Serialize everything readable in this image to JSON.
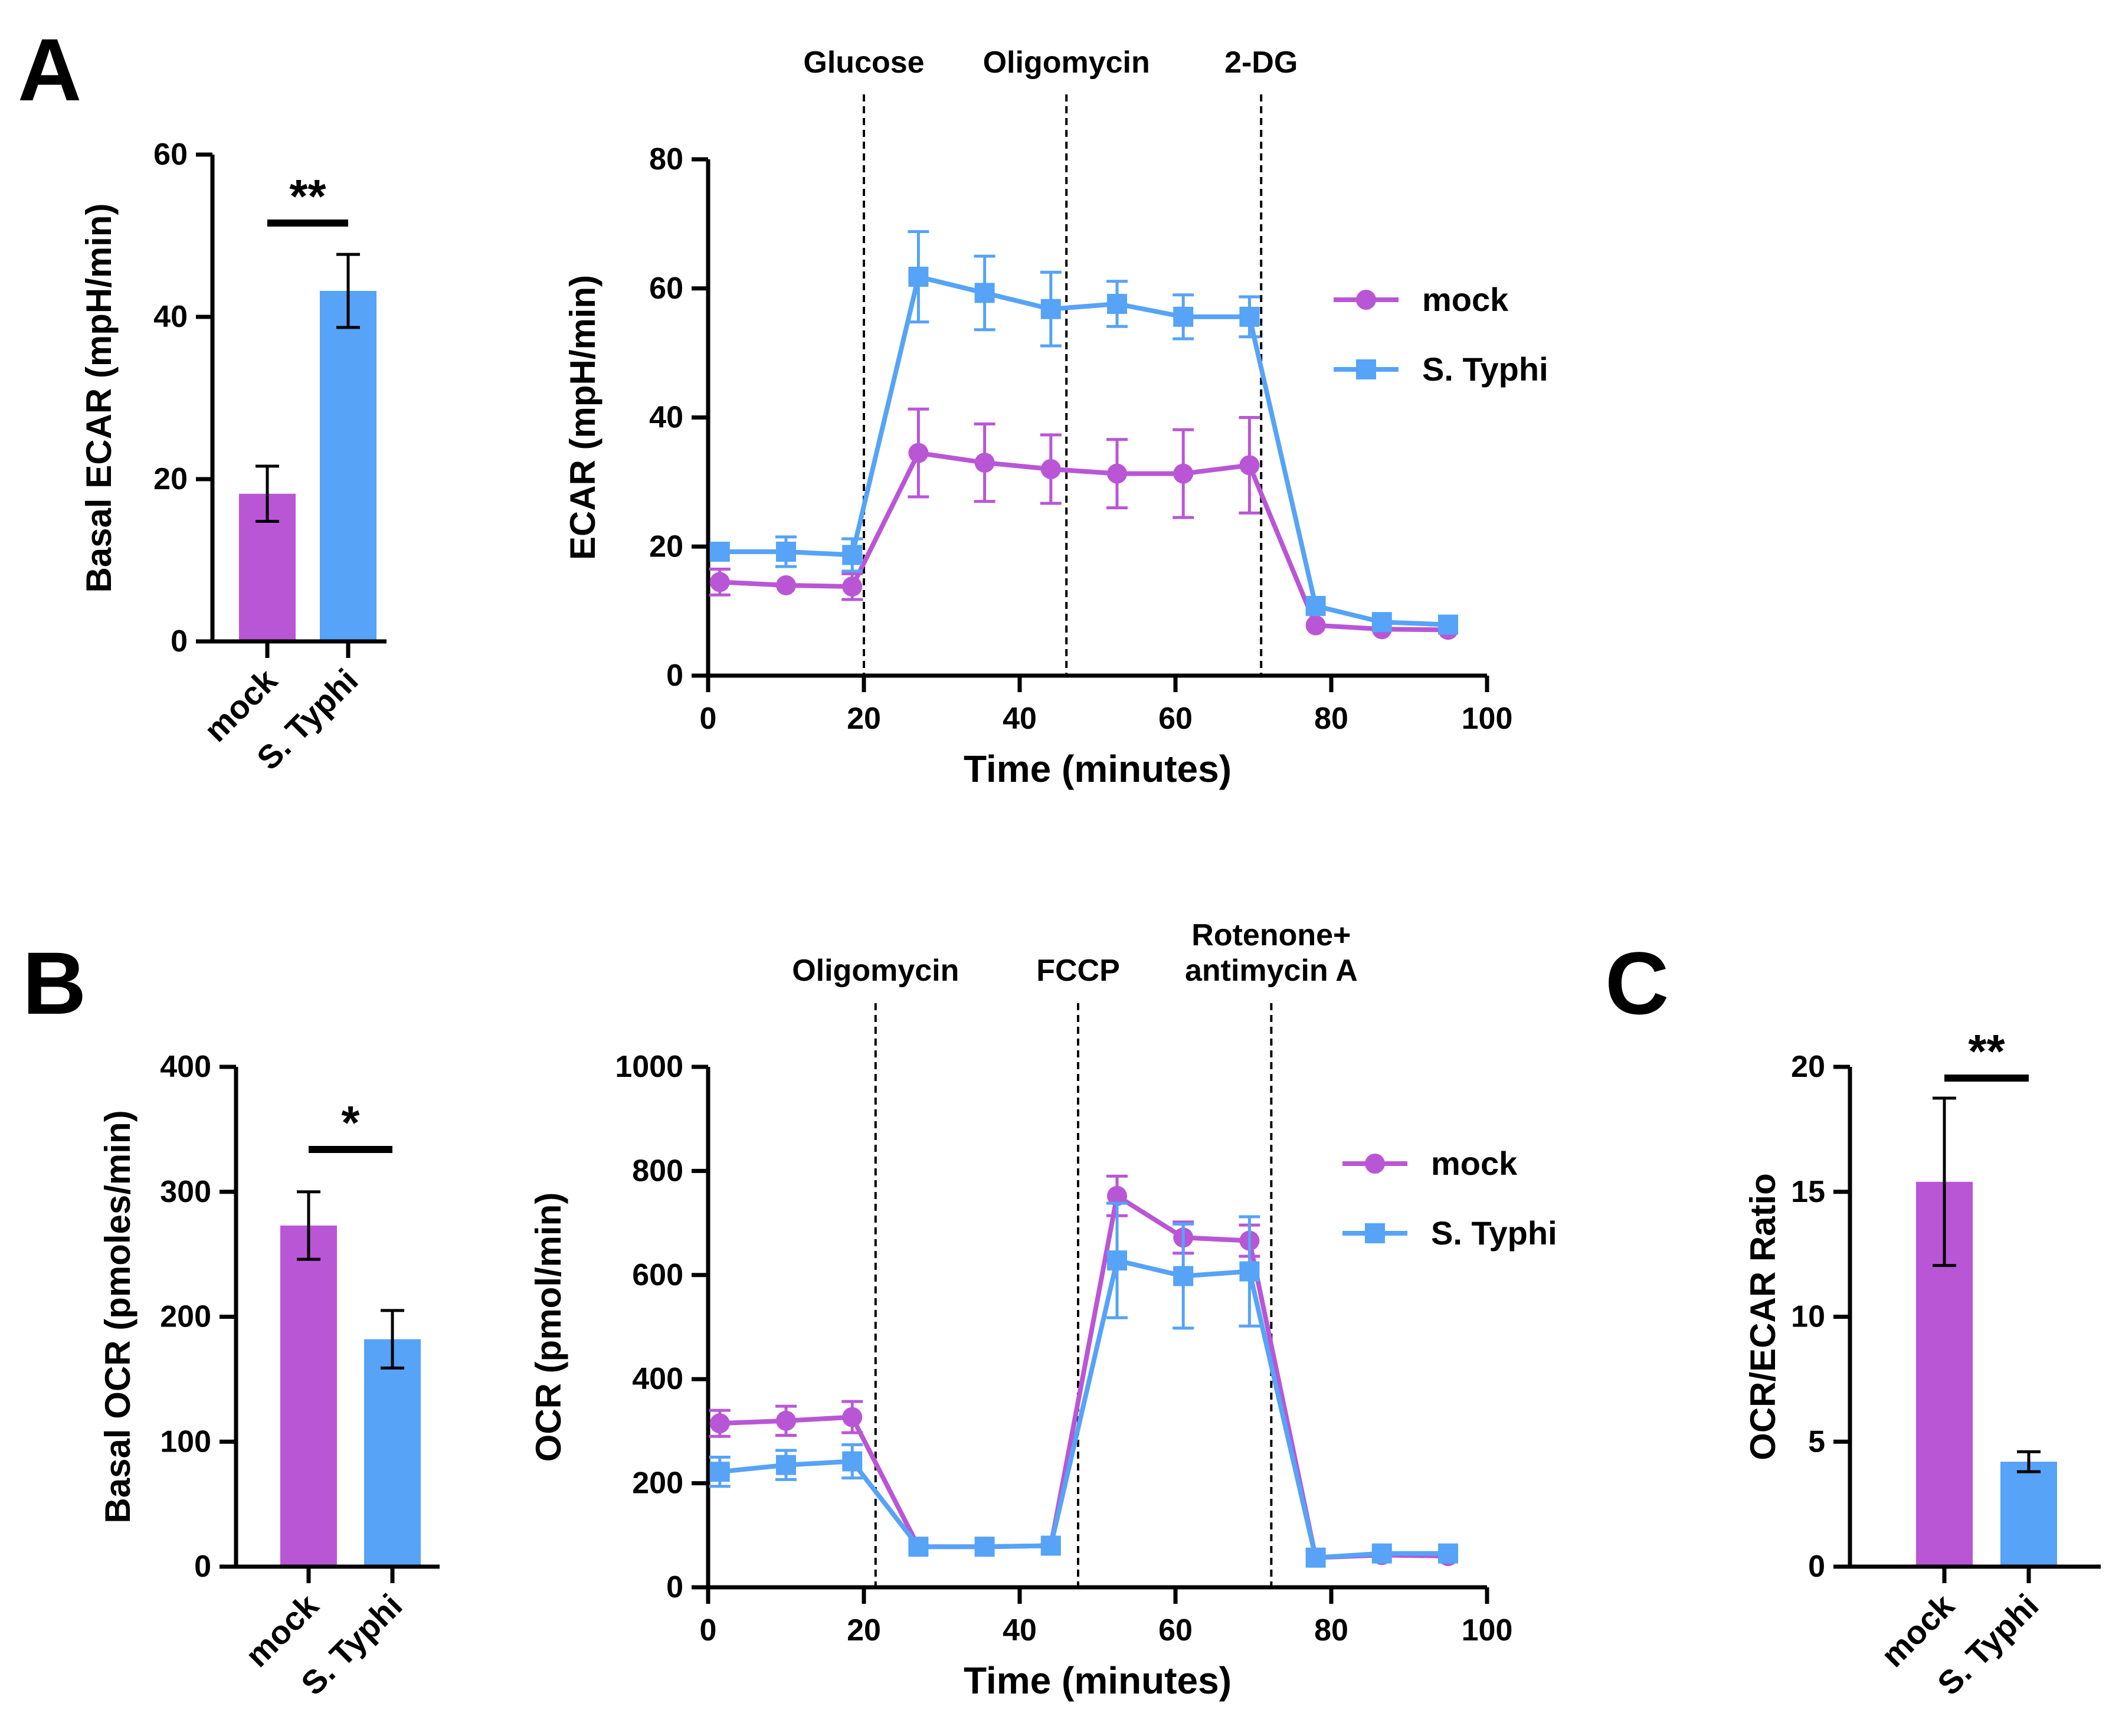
{
  "panel_labels": {
    "a": "A",
    "b": "B",
    "c": "C"
  },
  "colors": {
    "mock": "#B956D6",
    "typhi": "#56A3F7",
    "axis": "#000000"
  },
  "chart_data": [
    {
      "id": "basal-ecar",
      "type": "bar",
      "categories": [
        "mock",
        "S. Typhi"
      ],
      "values": [
        18.2,
        43.2
      ],
      "errors": [
        3.4,
        4.5
      ],
      "ylabel": "Basal ECAR (mpH/min)",
      "ylim": [
        0,
        60
      ],
      "yticks": [
        0,
        20,
        40,
        60
      ],
      "significance": "**",
      "bar_colors": [
        "#B956D6",
        "#56A3F7"
      ]
    },
    {
      "id": "ecar-time",
      "type": "line",
      "xlabel": "Time (minutes)",
      "ylabel": "ECAR (mpH/min)",
      "xlim": [
        0,
        100
      ],
      "ylim": [
        0,
        80
      ],
      "xticks": [
        0,
        20,
        40,
        60,
        80,
        100
      ],
      "yticks": [
        0,
        20,
        40,
        60,
        80
      ],
      "injections": [
        {
          "x": 20,
          "label": [
            "Glucose"
          ]
        },
        {
          "x": 46,
          "label": [
            "Oligomycin"
          ]
        },
        {
          "x": 71,
          "label": [
            "2-DG"
          ]
        }
      ],
      "legend": {
        "position": "right",
        "entries": [
          "mock",
          "S. Typhi"
        ]
      },
      "series": [
        {
          "name": "mock",
          "marker": "circle",
          "color": "#B956D6",
          "x": [
            1.5,
            10,
            18.5,
            27,
            35.5,
            44,
            52.5,
            61,
            69.5,
            78,
            86.5,
            95
          ],
          "y": [
            14.5,
            14,
            13.8,
            34.5,
            33,
            32,
            31.3,
            31.3,
            32.6,
            7.8,
            7.2,
            7.1
          ],
          "err": [
            2,
            0,
            2,
            6.8,
            6,
            5.3,
            5.3,
            6.8,
            7.4,
            0,
            0,
            0
          ]
        },
        {
          "name": "S. Typhi",
          "marker": "square",
          "color": "#56A3F7",
          "x": [
            1.5,
            10,
            18.5,
            27,
            35.5,
            44,
            52.5,
            61,
            69.5,
            78,
            86.5,
            95
          ],
          "y": [
            19.2,
            19.2,
            18.7,
            61.8,
            59.3,
            56.8,
            57.6,
            55.6,
            55.6,
            10.8,
            8.3,
            7.9
          ],
          "err": [
            0,
            2.3,
            2.5,
            7,
            5.7,
            5.7,
            3.5,
            3.4,
            3.1,
            0,
            0,
            0
          ]
        }
      ]
    },
    {
      "id": "basal-ocr",
      "type": "bar",
      "categories": [
        "mock",
        "S. Typhi"
      ],
      "values": [
        273,
        182
      ],
      "errors": [
        27,
        23
      ],
      "ylabel": "Basal OCR (pmoles/min)",
      "ylim": [
        0,
        400
      ],
      "yticks": [
        0,
        100,
        200,
        300,
        400
      ],
      "significance": "*",
      "bar_colors": [
        "#B956D6",
        "#56A3F7"
      ]
    },
    {
      "id": "ocr-time",
      "type": "line",
      "xlabel": "Time (minutes)",
      "ylabel": "OCR (pmol/min)",
      "xlim": [
        0,
        100
      ],
      "ylim": [
        0,
        1000
      ],
      "xticks": [
        0,
        20,
        40,
        60,
        80,
        100
      ],
      "yticks": [
        0,
        200,
        400,
        600,
        800,
        1000
      ],
      "injections": [
        {
          "x": 21.5,
          "label": [
            "Oligomycin"
          ]
        },
        {
          "x": 47.5,
          "label": [
            "FCCP"
          ]
        },
        {
          "x": 72.3,
          "label": [
            "Rotenone+",
            "antimycin A"
          ]
        }
      ],
      "legend": {
        "position": "right",
        "entries": [
          "mock",
          "S. Typhi"
        ]
      },
      "series": [
        {
          "name": "mock",
          "marker": "circle",
          "color": "#B956D6",
          "x": [
            1.5,
            10,
            18.5,
            27,
            35.5,
            44,
            52.5,
            61,
            69.5,
            78,
            86.5,
            95
          ],
          "y": [
            315,
            320,
            327,
            78,
            78,
            80,
            752,
            672,
            666,
            57,
            62,
            60
          ],
          "err": [
            25,
            28,
            30,
            0,
            0,
            0,
            38,
            30,
            30,
            0,
            0,
            0
          ]
        },
        {
          "name": "S. Typhi",
          "marker": "square",
          "color": "#56A3F7",
          "x": [
            1.5,
            10,
            18.5,
            27,
            35.5,
            44,
            52.5,
            61,
            69.5,
            78,
            86.5,
            95
          ],
          "y": [
            222,
            235,
            242,
            78,
            78,
            80,
            628,
            598,
            607,
            57,
            65,
            65
          ],
          "err": [
            28,
            28,
            32,
            0,
            0,
            0,
            110,
            100,
            105,
            0,
            0,
            0
          ]
        }
      ]
    },
    {
      "id": "ocr-ecar-ratio",
      "type": "bar",
      "categories": [
        "mock",
        "S. Typhi"
      ],
      "values": [
        15.4,
        4.2
      ],
      "errors": [
        3.35,
        0.4
      ],
      "ylabel": "OCR/ECAR Ratio",
      "ylim": [
        0,
        20
      ],
      "yticks": [
        0,
        5,
        10,
        15,
        20
      ],
      "significance": "**",
      "bar_colors": [
        "#B956D6",
        "#56A3F7"
      ]
    }
  ]
}
